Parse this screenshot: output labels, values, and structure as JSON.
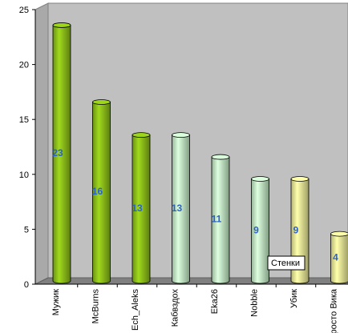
{
  "chart_data": {
    "type": "bar",
    "style": "3d-cylinder",
    "categories": [
      "Мужик",
      "McBurns",
      "Ech_Aleks",
      "Кабвздох",
      "Eka26",
      "Nobble",
      "Убик",
      "росто Вика"
    ],
    "values": [
      23,
      16,
      13,
      13,
      11,
      9,
      9,
      4
    ],
    "data_labels": [
      "23",
      "16",
      "13",
      "13",
      "11",
      "9",
      "9",
      "4"
    ],
    "ylim": [
      0,
      25
    ],
    "yticks": [
      0,
      5,
      10,
      15,
      20,
      25
    ],
    "ytick_labels": [
      "0",
      "5",
      "10",
      "15",
      "20",
      "25"
    ],
    "grid": false,
    "bar_colors": [
      "#8fc21a",
      "#8fc21a",
      "#8fc21a",
      "#c6f2c8",
      "#c6f2c8",
      "#c6f2c8",
      "#f2f29a",
      "#f2f29a"
    ],
    "wall_color": "#c0c0c0",
    "floor_color": "#808080",
    "data_label_color": "#2a62c9"
  },
  "tooltip": {
    "text": "Стенки"
  }
}
